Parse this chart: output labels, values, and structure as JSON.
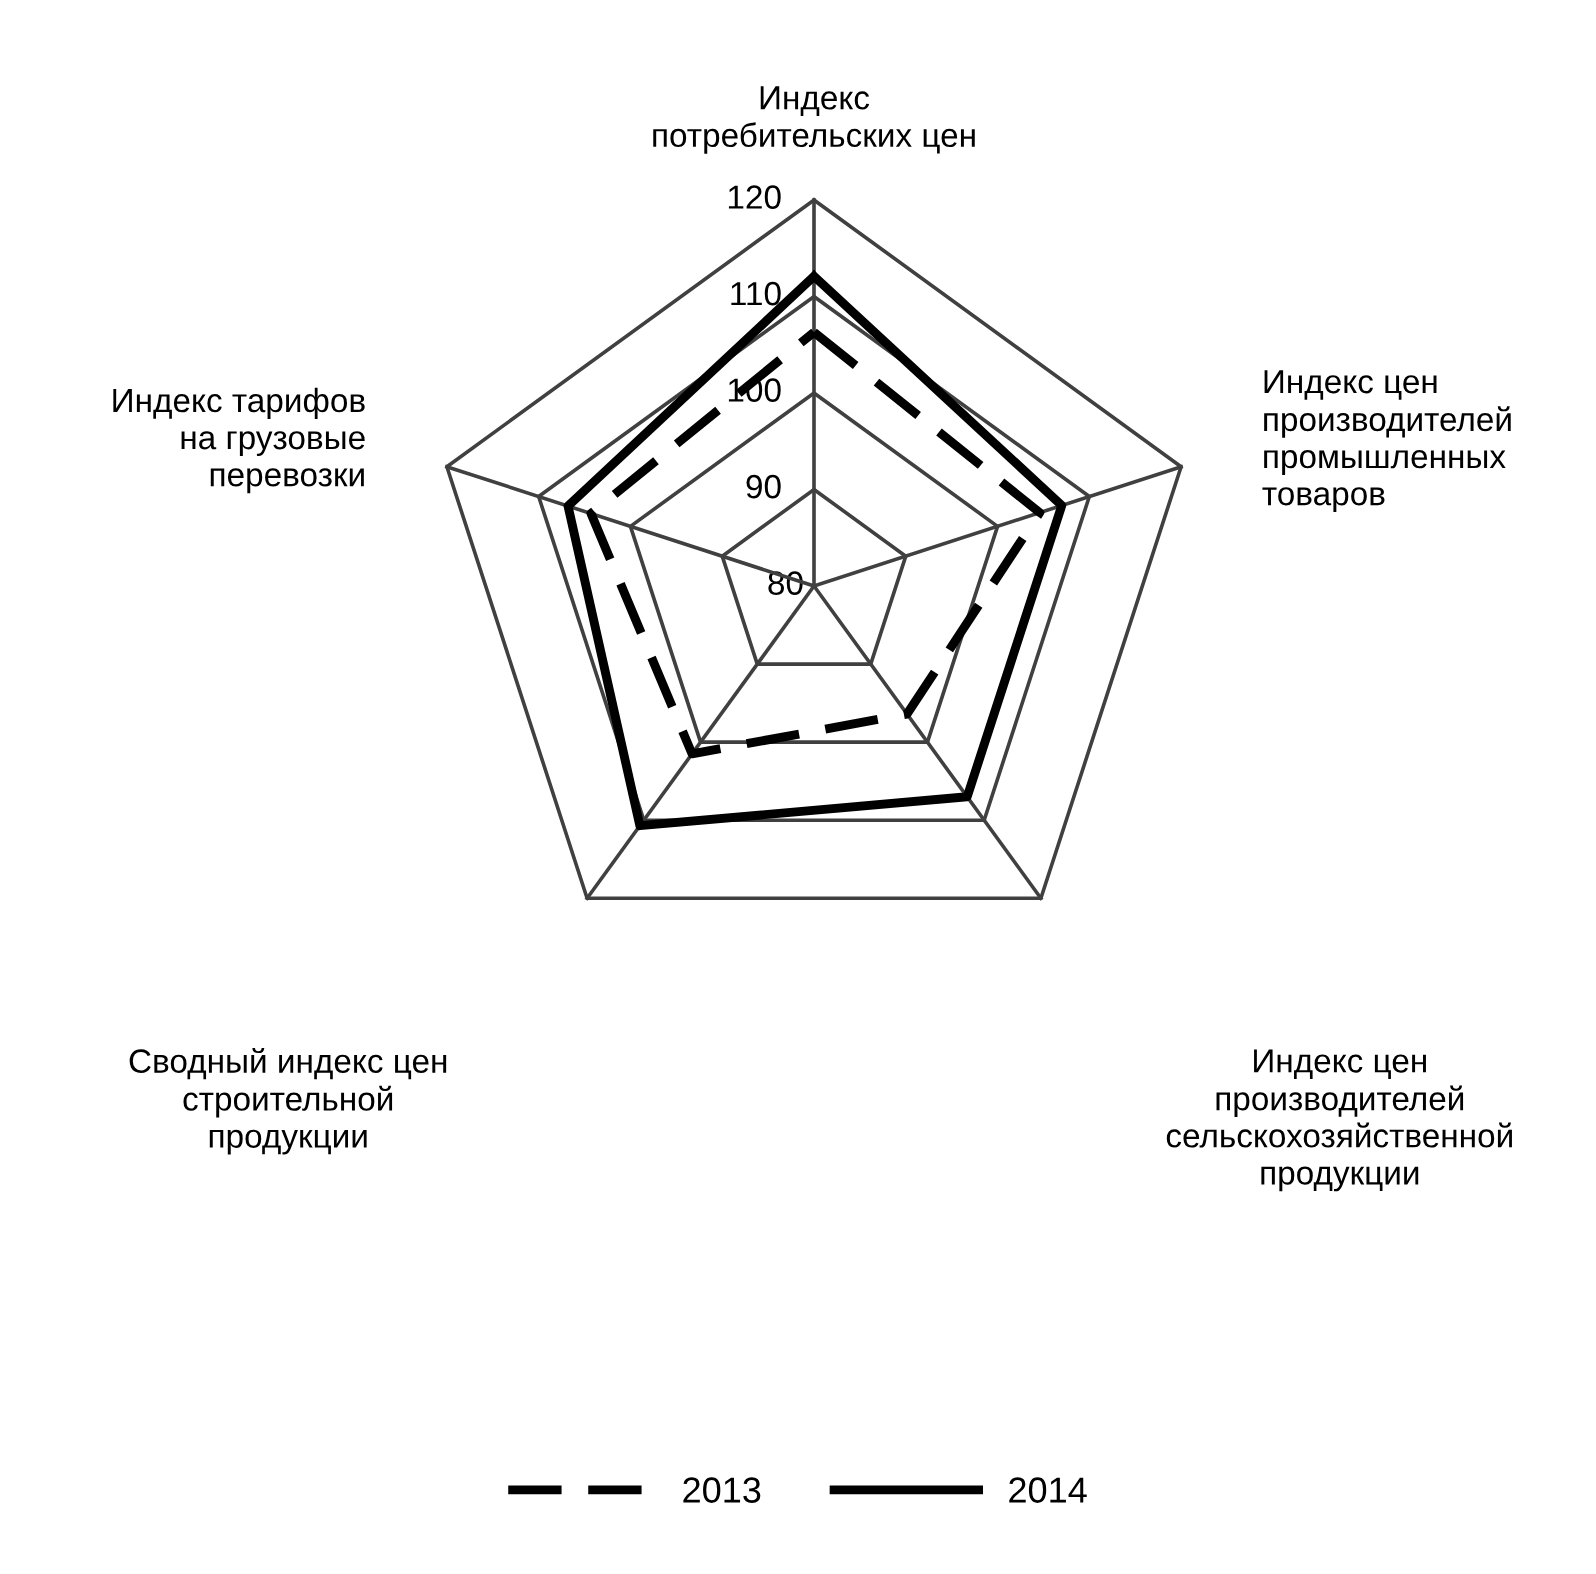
{
  "chart_data": {
    "type": "radar",
    "categories": [
      "Индекс\nпотребительских цен",
      "Индекс цен\nпроизводителей\nпромышленных\nтоваров",
      "Индекс цен\nпроизводителей\nсельскохозяйственной\nпродукции",
      "Сводный индекс цен\nстроительной\nпродукции",
      "Индекс тарифов\nна грузовые\nперевозки"
    ],
    "series": [
      {
        "name": "2013",
        "color": "#000000",
        "line_style": "dashed",
        "values": [
          106.3,
          104.6,
          96.4,
          101.5,
          104.3
        ]
      },
      {
        "name": "2014",
        "color": "#000000",
        "line_style": "solid",
        "values": [
          112.1,
          107,
          107,
          110.7,
          106.8
        ]
      }
    ],
    "ylim": [
      80,
      120
    ],
    "yticks": [
      80,
      90,
      100,
      110,
      120
    ],
    "grid": true,
    "legend": "bottom",
    "marker": "none"
  }
}
